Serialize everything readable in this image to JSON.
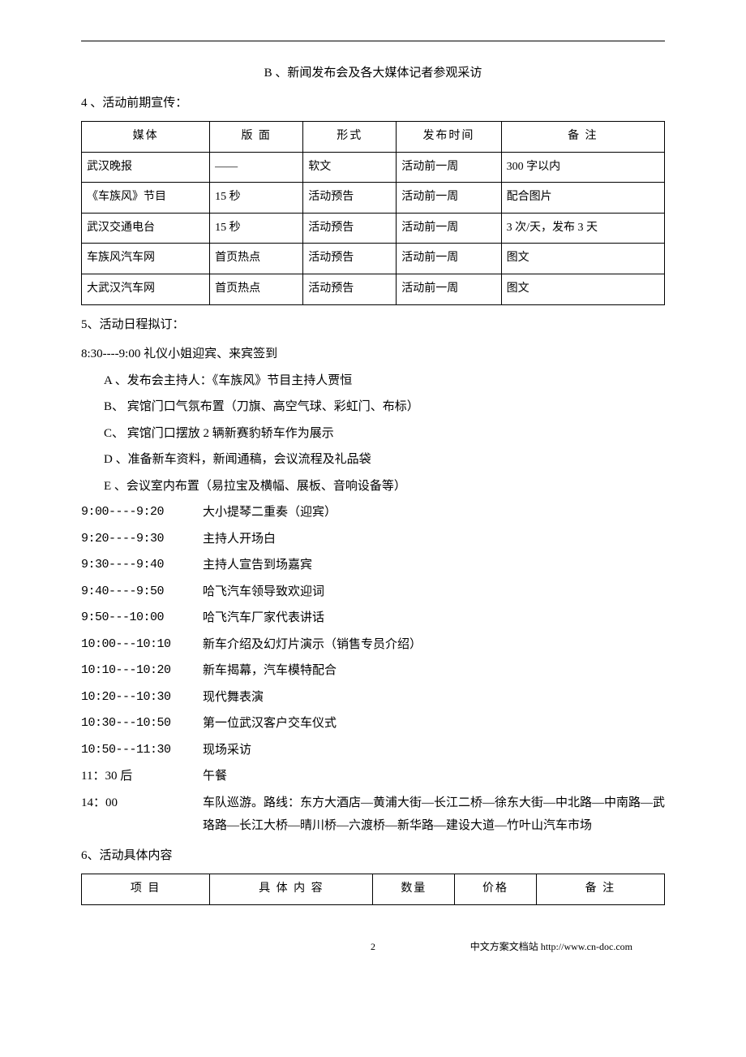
{
  "top_line": "B 、新闻发布会及各大媒体记者参观采访",
  "section4_label": "4 、活动前期宣传：",
  "table1": {
    "headers": [
      "媒体",
      "版 面",
      "形式",
      "发布时间",
      "备 注"
    ],
    "rows": [
      [
        "武汉晚报",
        "——",
        "软文",
        "活动前一周",
        "300 字以内"
      ],
      [
        "《车族风》节目",
        "15 秒",
        "活动预告",
        "活动前一周",
        "配合图片"
      ],
      [
        "武汉交通电台",
        "15 秒",
        "活动预告",
        "活动前一周",
        "3 次/天，发布 3 天"
      ],
      [
        "车族风汽车网",
        "首页热点",
        "活动预告",
        "活动前一周",
        "图文"
      ],
      [
        "大武汉汽车网",
        "首页热点",
        "活动预告",
        "活动前一周",
        "图文"
      ]
    ]
  },
  "section5_label": "5、活动日程拟订：",
  "sched_intro": "8:30----9:00 礼仪小姐迎宾、来宾签到",
  "prep_items": [
    "A 、发布会主持人：《车族风》节目主持人贾恒",
    "B、 宾馆门口气氛布置（刀旗、高空气球、彩虹门、布标）",
    "C、 宾馆门口摆放 2 辆新赛豹轿车作为展示",
    "D 、准备新车资料，新闻通稿，会议流程及礼品袋",
    "E 、会议室内布置（易拉宝及横幅、展板、音响设备等）"
  ],
  "schedule": [
    {
      "t": "9:00----9:20",
      "d": "大小提琴二重奏（迎宾）"
    },
    {
      "t": "9:20----9:30",
      "d": "主持人开场白"
    },
    {
      "t": "9:30----9:40",
      "d": "主持人宣告到场嘉宾"
    },
    {
      "t": "9:40----9:50",
      "d": "哈飞汽车领导致欢迎词"
    },
    {
      "t": "9:50---10:00",
      "d": "哈飞汽车厂家代表讲话"
    },
    {
      "t": "10:00---10:10",
      "d": "新车介绍及幻灯片演示（销售专员介绍）"
    },
    {
      "t": "10:10---10:20",
      "d": "新车揭幕，汽车模特配合"
    },
    {
      "t": "10:20---10:30",
      "d": "现代舞表演"
    },
    {
      "t": "10:30---10:50",
      "d": "第一位武汉客户交车仪式"
    },
    {
      "t": "10:50---11:30",
      "d": "现场采访"
    }
  ],
  "schedule_tail": [
    {
      "t": "11：30 后",
      "d": "午餐"
    },
    {
      "t": "14：00",
      "d": "车队巡游。路线：东方大酒店—黄浦大街—长江二桥—徐东大街—中北路—中南路—武珞路—长江大桥—晴川桥—六渡桥—新华路—建设大道—竹叶山汽车市场"
    }
  ],
  "section6_label": "6、活动具体内容",
  "table2": {
    "headers": [
      "项 目",
      "具 体 内 容",
      "数量",
      "价格",
      "备  注"
    ]
  },
  "footer": {
    "page": "2",
    "site": "中文方案文档站  http://www.cn-doc.com"
  }
}
